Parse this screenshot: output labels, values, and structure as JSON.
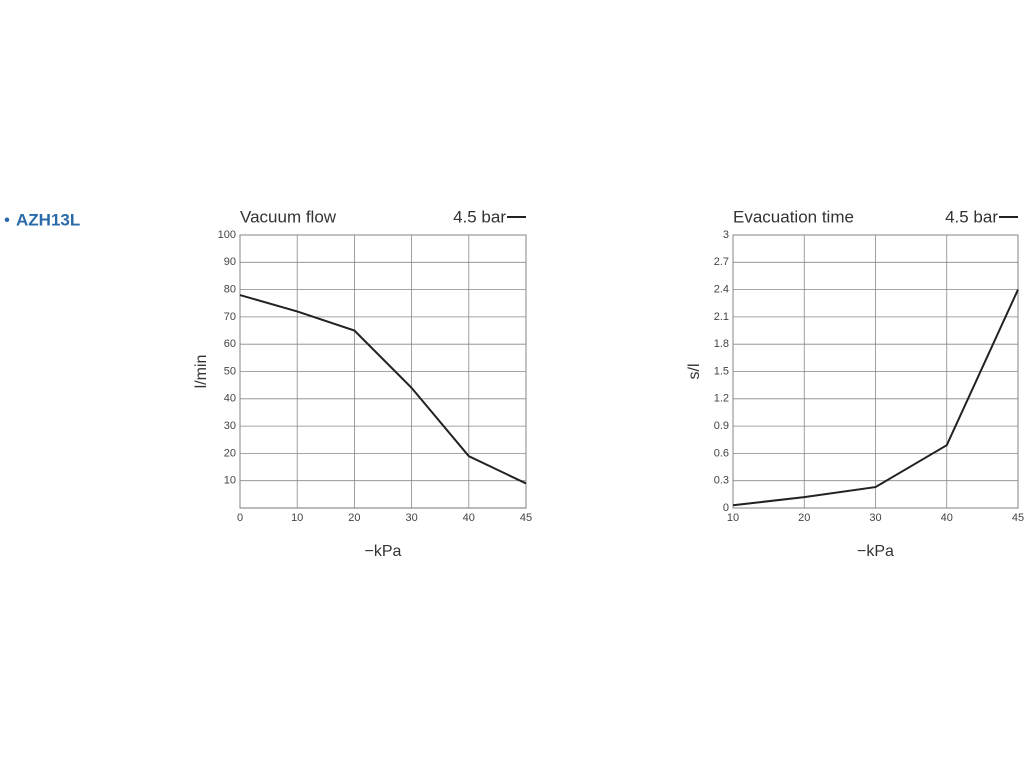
{
  "header": "AZH13L",
  "chart_data": [
    {
      "type": "line",
      "title": "Vacuum flow",
      "x_label": "−kPa",
      "y_label": "l/min",
      "categories": [
        "0",
        "10",
        "20",
        "30",
        "40",
        "45"
      ],
      "series": [
        {
          "name": "4.5 bar",
          "color": "#222222",
          "values": [
            78,
            72,
            65,
            44,
            19,
            9
          ]
        }
      ],
      "ylim": [
        0,
        100
      ],
      "yticks": [
        10,
        20,
        30,
        40,
        50,
        60,
        70,
        80,
        90,
        100
      ],
      "grid": true
    },
    {
      "type": "line",
      "title": "Evacuation time",
      "x_label": "−kPa",
      "y_label": "s/l",
      "categories": [
        "10",
        "20",
        "30",
        "40",
        "45"
      ],
      "series": [
        {
          "name": "4.5 bar",
          "color": "#222222",
          "values": [
            0.03,
            0.12,
            0.23,
            0.69,
            2.4
          ]
        }
      ],
      "ylim": [
        0,
        3
      ],
      "yticks": [
        0,
        0.3,
        0.6,
        0.9,
        1.2,
        1.5,
        1.8,
        2.1,
        2.4,
        2.7,
        3
      ],
      "grid": true
    }
  ]
}
